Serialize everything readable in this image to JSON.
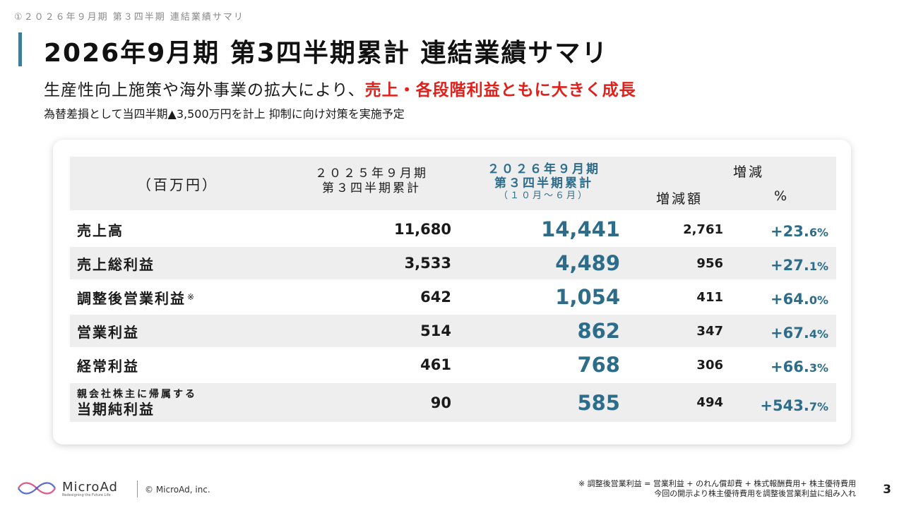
{
  "breadcrumb": "①２０２６年９月期 第３四半期 連結業績サマリ",
  "title": "2026年9月期 第3四半期累計 連結業績サマリ",
  "subtitle": {
    "prefix": "生産性向上施策や海外事業の拡大により、",
    "highlight": "売上・各段階利益ともに大きく成長"
  },
  "note": "為替差損として当四半期▲3,500万円を計上 抑制に向け対策を実施予定",
  "table": {
    "header": {
      "unit": "（百万円）",
      "prev_line1": "２０２５年９月期",
      "prev_line2": "第３四半期累計",
      "cur_line1": "２０２６年９月期",
      "cur_line2": "第３四半期累計",
      "cur_line3": "（１０月～６月）",
      "diff": "増減",
      "diff_amount": "増減額",
      "diff_pct": "%"
    },
    "rows": [
      {
        "label": "売上高",
        "prev": "11,680",
        "cur": "14,441",
        "amount": "2,761",
        "pct_int": "+23.",
        "pct_dec": "6%"
      },
      {
        "label": "売上総利益",
        "prev": "3,533",
        "cur": "4,489",
        "amount": "956",
        "pct_int": "+27.",
        "pct_dec": "1%"
      },
      {
        "label": "調整後営業利益",
        "mark": "※",
        "prev": "642",
        "cur": "1,054",
        "amount": "411",
        "pct_int": "+64.",
        "pct_dec": "0%"
      },
      {
        "label": "営業利益",
        "prev": "514",
        "cur": "862",
        "amount": "347",
        "pct_int": "+67.",
        "pct_dec": "4%"
      },
      {
        "label": "経常利益",
        "prev": "461",
        "cur": "768",
        "amount": "306",
        "pct_int": "+66.",
        "pct_dec": "3%"
      },
      {
        "label_line1": "親会社株主に帰属する",
        "label_line2": "当期純利益",
        "prev": "90",
        "cur": "585",
        "amount": "494",
        "pct_int": "+543.",
        "pct_dec": "7%"
      }
    ]
  },
  "footer": {
    "logo_text": "MicroAd",
    "logo_tagline": "Redesigning the Future Life",
    "copyright": "© MicroAd, inc.",
    "footnote_line1": "※ 調整後営業利益 = 営業利益 + のれん償却費 + 株式報酬費用+ 株主優待費用",
    "footnote_line2": "今回の開示より株主優待費用を調整後営業利益に組み入れ",
    "page_number": "3"
  },
  "colors": {
    "accent": "#2d6d8a",
    "highlight": "#e0201b",
    "title_bar": "#3f7f95",
    "header_bg": "#eeeeee"
  }
}
